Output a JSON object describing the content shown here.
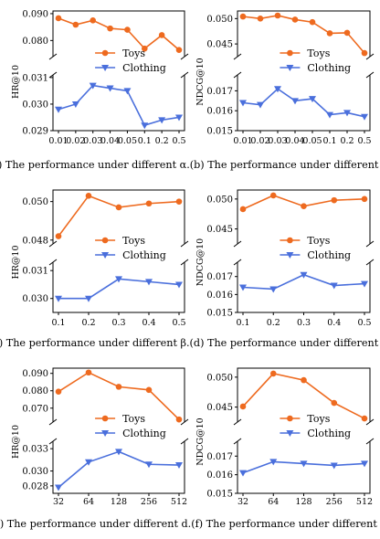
{
  "colors": {
    "toys": "#ee6a1f",
    "clothing": "#4a6fdc",
    "axis": "#000000"
  },
  "legend": {
    "toys": "Toys",
    "clothing": "Clothing"
  },
  "captions": [
    "(a) The performance under different α.(b) The performance under different α.",
    "(c) The performance under different β.(d) The performance under different β.",
    "(e) The performance under different d.(f) The performance under different d."
  ],
  "chart_data": [
    {
      "id": "a",
      "type": "line",
      "metric": "HR@10",
      "ylabel": "HR@10",
      "categories": [
        "0.01",
        "0.02",
        "0.03",
        "0.04",
        "0.05",
        "0.1",
        "0.2",
        "0.5"
      ],
      "series": [
        {
          "name": "Toys",
          "values": [
            0.0883,
            0.0859,
            0.0875,
            0.0845,
            0.084,
            0.077,
            0.082,
            0.0765
          ]
        },
        {
          "name": "Clothing",
          "values": [
            0.0298,
            0.03,
            0.0307,
            0.0306,
            0.0305,
            0.0292,
            0.0294,
            0.0295
          ]
        }
      ],
      "top_ylim": [
        0.074,
        0.091
      ],
      "top_ticks": [
        "0.090",
        "0.080"
      ],
      "top_tick_values": [
        0.09,
        0.08
      ],
      "bottom_ylim": [
        0.029,
        0.0311
      ],
      "bottom_ticks": [
        "0.031",
        "0.030",
        "0.029"
      ],
      "bottom_tick_values": [
        0.031,
        0.03,
        0.029
      ]
    },
    {
      "id": "b",
      "type": "line",
      "metric": "NDCG@10",
      "ylabel": "NDCG@10",
      "categories": [
        "0.01",
        "0.02",
        "0.03",
        "0.04",
        "0.05",
        "0.1",
        "0.2",
        "0.5"
      ],
      "series": [
        {
          "name": "Toys",
          "values": [
            0.0504,
            0.05,
            0.0506,
            0.0498,
            0.0493,
            0.0471,
            0.0472,
            0.0432
          ]
        },
        {
          "name": "Clothing",
          "values": [
            0.0164,
            0.0163,
            0.0171,
            0.0165,
            0.0166,
            0.0158,
            0.0159,
            0.0157
          ]
        }
      ],
      "top_ylim": [
        0.0425,
        0.0515
      ],
      "top_ticks": [
        "0.050",
        "0.045"
      ],
      "top_tick_values": [
        0.05,
        0.045
      ],
      "bottom_ylim": [
        0.015,
        0.0178
      ],
      "bottom_ticks": [
        "0.017",
        "0.016",
        "0.015"
      ],
      "bottom_tick_values": [
        0.017,
        0.016,
        0.015
      ]
    },
    {
      "id": "c",
      "type": "line",
      "metric": "HR@10",
      "ylabel": "HR@10",
      "categories": [
        "0.1",
        "0.2",
        "0.3",
        "0.4",
        "0.5"
      ],
      "series": [
        {
          "name": "Toys",
          "values": [
            0.0482,
            0.0503,
            0.0497,
            0.0499,
            0.05
          ]
        },
        {
          "name": "Clothing",
          "values": [
            0.03,
            0.03,
            0.0307,
            0.0306,
            0.0305
          ]
        }
      ],
      "top_ylim": [
        0.0478,
        0.0506
      ],
      "top_ticks": [
        "0.050",
        "0.048"
      ],
      "top_tick_values": [
        0.05,
        0.048
      ],
      "bottom_ylim": [
        0.0295,
        0.0313
      ],
      "bottom_ticks": [
        "0.031",
        "0.030"
      ],
      "bottom_tick_values": [
        0.031,
        0.03
      ]
    },
    {
      "id": "d",
      "type": "line",
      "metric": "NDCG@10",
      "ylabel": "NDCG@10",
      "categories": [
        "0.1",
        "0.2",
        "0.3",
        "0.4",
        "0.5"
      ],
      "series": [
        {
          "name": "Toys",
          "values": [
            0.0483,
            0.0506,
            0.0488,
            0.0498,
            0.05
          ]
        },
        {
          "name": "Clothing",
          "values": [
            0.0164,
            0.0163,
            0.0171,
            0.0165,
            0.0166
          ]
        }
      ],
      "top_ylim": [
        0.0425,
        0.0515
      ],
      "top_ticks": [
        "0.050",
        "0.045"
      ],
      "top_tick_values": [
        0.05,
        0.045
      ],
      "bottom_ylim": [
        0.015,
        0.0178
      ],
      "bottom_ticks": [
        "0.017",
        "0.016",
        "0.015"
      ],
      "bottom_tick_values": [
        0.017,
        0.016,
        0.015
      ]
    },
    {
      "id": "e",
      "type": "line",
      "metric": "HR@10",
      "ylabel": "HR@10",
      "categories": [
        "32",
        "64",
        "128",
        "256",
        "512"
      ],
      "series": [
        {
          "name": "Toys",
          "values": [
            0.0795,
            0.0905,
            0.0823,
            0.0805,
            0.0635
          ]
        },
        {
          "name": "Clothing",
          "values": [
            0.0278,
            0.0312,
            0.0326,
            0.0309,
            0.0308
          ]
        }
      ],
      "top_ylim": [
        0.062,
        0.093
      ],
      "top_ticks": [
        "0.090",
        "0.080",
        "0.070"
      ],
      "top_tick_values": [
        0.09,
        0.08,
        0.07
      ],
      "bottom_ylim": [
        0.027,
        0.034
      ],
      "bottom_ticks": [
        "0.033",
        "0.030",
        "0.028"
      ],
      "bottom_tick_values": [
        0.033,
        0.03,
        0.028
      ]
    },
    {
      "id": "f",
      "type": "line",
      "metric": "NDCG@10",
      "ylabel": "NDCG@10",
      "categories": [
        "32",
        "64",
        "128",
        "256",
        "512"
      ],
      "series": [
        {
          "name": "Toys",
          "values": [
            0.0451,
            0.0506,
            0.0495,
            0.0457,
            0.0431
          ]
        },
        {
          "name": "Clothing",
          "values": [
            0.0161,
            0.0167,
            0.0166,
            0.0165,
            0.0166
          ]
        }
      ],
      "top_ylim": [
        0.0425,
        0.0515
      ],
      "top_ticks": [
        "0.050",
        "0.045"
      ],
      "top_tick_values": [
        0.05,
        0.045
      ],
      "bottom_ylim": [
        0.015,
        0.0178
      ],
      "bottom_ticks": [
        "0.017",
        "0.016",
        "0.015"
      ],
      "bottom_tick_values": [
        0.017,
        0.016,
        0.015
      ]
    }
  ]
}
